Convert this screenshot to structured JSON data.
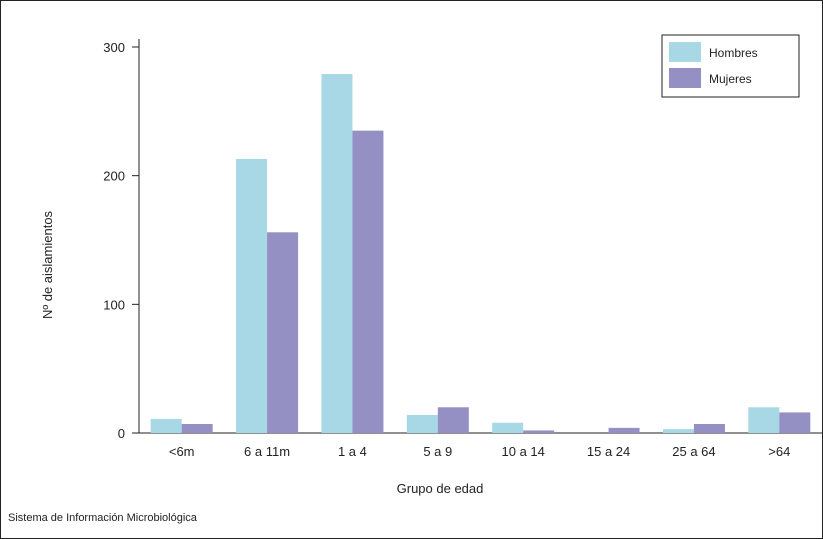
{
  "source_note": "Sistema de Información Microbiológica",
  "chart_data": {
    "type": "bar",
    "xlabel": "Grupo de edad",
    "ylabel": "Nº de aislamientos",
    "ylim": [
      0,
      300
    ],
    "yticks": [
      0,
      100,
      200,
      300
    ],
    "categories": [
      "<6m",
      "6 a 11m",
      "1 a 4",
      "5 a 9",
      "10 a 14",
      "15 a 24",
      "25 a 64",
      ">64"
    ],
    "series": [
      {
        "name": "Hombres",
        "color": "#a8d8e6",
        "values": [
          11,
          213,
          279,
          14,
          8,
          0,
          3,
          20
        ]
      },
      {
        "name": "Mujeres",
        "color": "#9590c3",
        "values": [
          7,
          156,
          235,
          20,
          2,
          4,
          7,
          16
        ]
      }
    ],
    "legend_position": "top-right",
    "grid": false
  }
}
